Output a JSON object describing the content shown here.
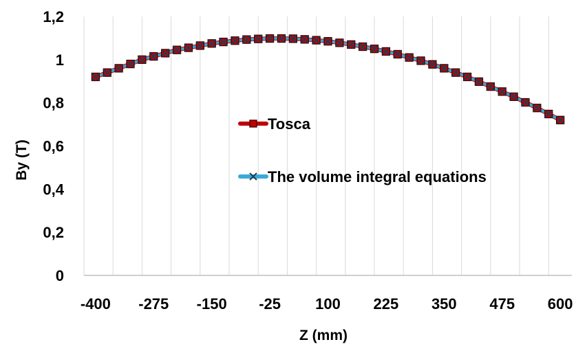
{
  "chart_data": {
    "type": "line",
    "xlabel": "Z (mm)",
    "ylabel": "By (T)",
    "xlim": [
      -425,
      625
    ],
    "ylim": [
      0,
      1.2
    ],
    "x_ticks": [
      -400,
      -275,
      -150,
      -25,
      100,
      225,
      350,
      475,
      600
    ],
    "x_tick_labels": [
      "-400",
      "-275",
      "-150",
      "-25",
      "100",
      "225",
      "350",
      "475",
      "600"
    ],
    "y_ticks": [
      0,
      0.2,
      0.4,
      0.6,
      0.8,
      1,
      1.2
    ],
    "y_tick_labels": [
      "0",
      "0,2",
      "0,4",
      "0,6",
      "0,8",
      "1",
      "1,2"
    ],
    "grid": "vertical",
    "legend_placement": "center",
    "x": [
      -400,
      -375,
      -350,
      -325,
      -300,
      -275,
      -250,
      -225,
      -200,
      -175,
      -150,
      -125,
      -100,
      -75,
      -50,
      -25,
      0,
      25,
      50,
      75,
      100,
      125,
      150,
      175,
      200,
      225,
      250,
      275,
      300,
      325,
      350,
      375,
      400,
      425,
      450,
      475,
      500,
      525,
      550,
      575,
      600
    ],
    "series": [
      {
        "name": "Tosca",
        "color": "#c00000",
        "marker": "square",
        "values": [
          0.92,
          0.94,
          0.96,
          0.98,
          1.0,
          1.015,
          1.03,
          1.045,
          1.055,
          1.065,
          1.075,
          1.082,
          1.088,
          1.093,
          1.096,
          1.098,
          1.098,
          1.097,
          1.094,
          1.09,
          1.085,
          1.078,
          1.07,
          1.06,
          1.05,
          1.038,
          1.025,
          1.01,
          0.995,
          0.978,
          0.96,
          0.94,
          0.92,
          0.898,
          0.875,
          0.852,
          0.828,
          0.802,
          0.776,
          0.748,
          0.72
        ]
      },
      {
        "name": "The volume integral equations",
        "color": "#3aa9d8",
        "marker": "x",
        "values": [
          0.92,
          0.94,
          0.96,
          0.98,
          1.0,
          1.015,
          1.03,
          1.045,
          1.055,
          1.065,
          1.075,
          1.082,
          1.088,
          1.093,
          1.096,
          1.098,
          1.098,
          1.097,
          1.094,
          1.09,
          1.085,
          1.078,
          1.07,
          1.06,
          1.05,
          1.038,
          1.025,
          1.01,
          0.995,
          0.978,
          0.96,
          0.94,
          0.92,
          0.898,
          0.875,
          0.852,
          0.828,
          0.802,
          0.776,
          0.748,
          0.72
        ]
      }
    ]
  }
}
